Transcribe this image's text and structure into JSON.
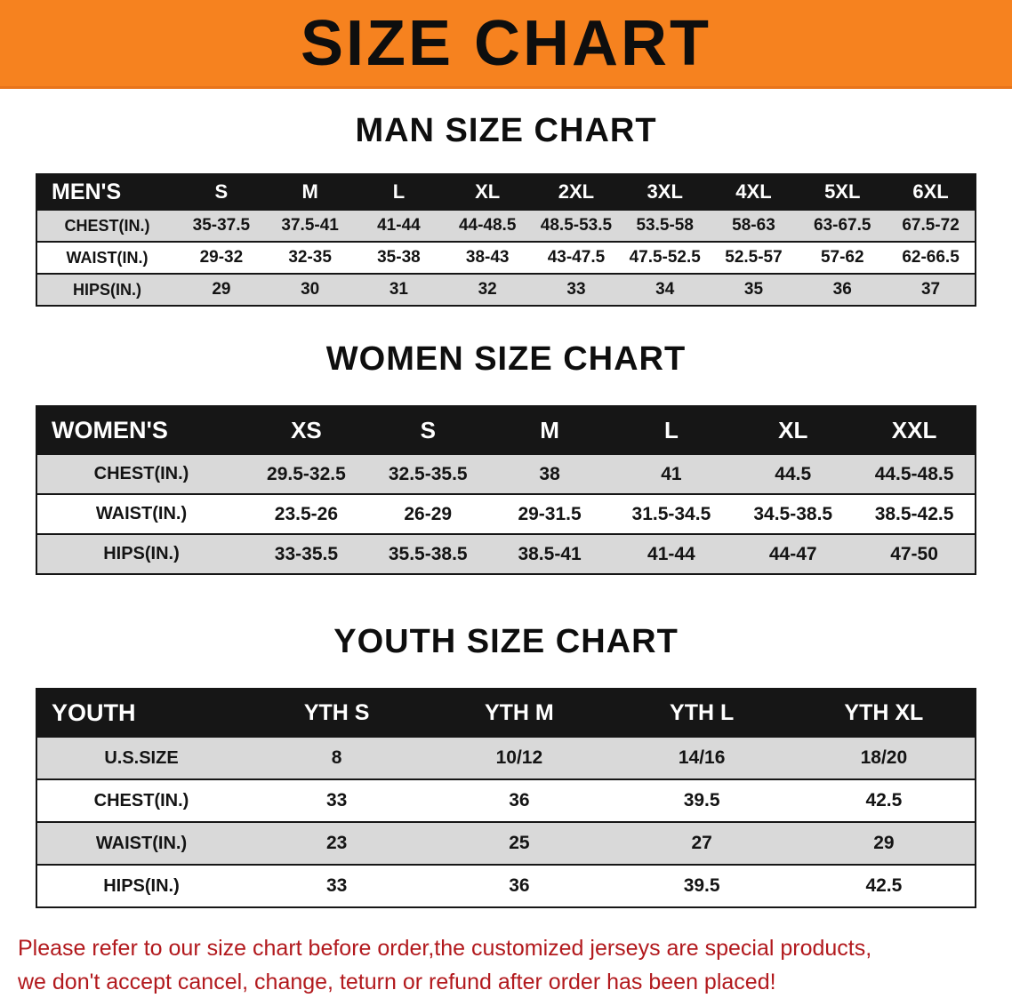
{
  "banner": {
    "title": "SIZE CHART",
    "background_color": "#f6821f",
    "text_color": "#0e0e0e"
  },
  "sections": {
    "men": {
      "heading": "MAN SIZE CHART",
      "table": {
        "header": [
          "MEN'S",
          "S",
          "M",
          "L",
          "XL",
          "2XL",
          "3XL",
          "4XL",
          "5XL",
          "6XL"
        ],
        "rows": [
          [
            "CHEST(IN.)",
            "35-37.5",
            "37.5-41",
            "41-44",
            "44-48.5",
            "48.5-53.5",
            "53.5-58",
            "58-63",
            "63-67.5",
            "67.5-72"
          ],
          [
            "WAIST(IN.)",
            "29-32",
            "32-35",
            "35-38",
            "38-43",
            "43-47.5",
            "47.5-52.5",
            "52.5-57",
            "57-62",
            "62-66.5"
          ],
          [
            "HIPS(IN.)",
            "29",
            "30",
            "31",
            "32",
            "33",
            "34",
            "35",
            "36",
            "37"
          ]
        ]
      }
    },
    "women": {
      "heading": "WOMEN SIZE CHART",
      "table": {
        "header": [
          "WOMEN'S",
          "XS",
          "S",
          "M",
          "L",
          "XL",
          "XXL"
        ],
        "rows": [
          [
            "CHEST(IN.)",
            "29.5-32.5",
            "32.5-35.5",
            "38",
            "41",
            "44.5",
            "44.5-48.5"
          ],
          [
            "WAIST(IN.)",
            "23.5-26",
            "26-29",
            "29-31.5",
            "31.5-34.5",
            "34.5-38.5",
            "38.5-42.5"
          ],
          [
            "HIPS(IN.)",
            "33-35.5",
            "35.5-38.5",
            "38.5-41",
            "41-44",
            "44-47",
            "47-50"
          ]
        ]
      }
    },
    "youth": {
      "heading": "YOUTH SIZE CHART",
      "table": {
        "header": [
          "YOUTH",
          "YTH S",
          "YTH M",
          "YTH L",
          "YTH XL"
        ],
        "rows": [
          [
            "U.S.SIZE",
            "8",
            "10/12",
            "14/16",
            "18/20"
          ],
          [
            "CHEST(IN.)",
            "33",
            "36",
            "39.5",
            "42.5"
          ],
          [
            "WAIST(IN.)",
            "23",
            "25",
            "27",
            "29"
          ],
          [
            "HIPS(IN.)",
            "33",
            "36",
            "39.5",
            "42.5"
          ]
        ]
      }
    }
  },
  "disclaimer": {
    "line1": "Please refer to our size chart before order,the customized jerseys are special products,",
    "line2": "we don't accept cancel, change, teturn or refund after order has been placed!",
    "text_color": "#b2191d"
  }
}
